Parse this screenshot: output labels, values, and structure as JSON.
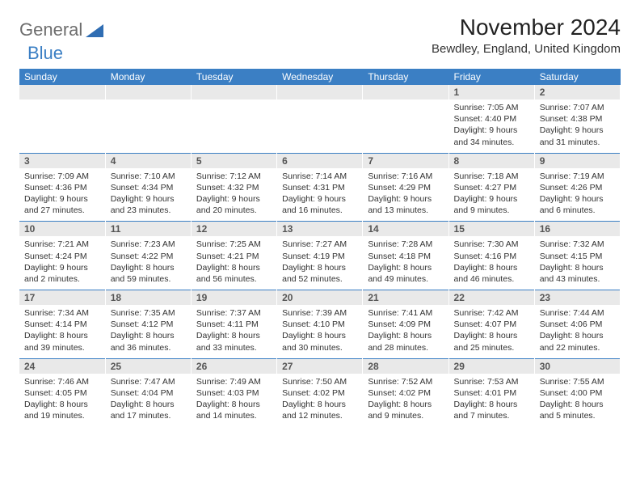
{
  "logo": {
    "part1": "General",
    "part2": "Blue"
  },
  "title": "November 2024",
  "location": "Bewdley, England, United Kingdom",
  "colors": {
    "header_bg": "#3b7fc4",
    "header_text": "#ffffff",
    "daynum_bg": "#e9e9e9",
    "border": "#3b7fc4",
    "text": "#333333",
    "logo_gray": "#6d6d6d",
    "logo_blue": "#3b7fc4"
  },
  "columns": [
    "Sunday",
    "Monday",
    "Tuesday",
    "Wednesday",
    "Thursday",
    "Friday",
    "Saturday"
  ],
  "weeks": [
    [
      null,
      null,
      null,
      null,
      null,
      {
        "n": "1",
        "sr": "7:05 AM",
        "ss": "4:40 PM",
        "dl": "9 hours and 34 minutes."
      },
      {
        "n": "2",
        "sr": "7:07 AM",
        "ss": "4:38 PM",
        "dl": "9 hours and 31 minutes."
      }
    ],
    [
      {
        "n": "3",
        "sr": "7:09 AM",
        "ss": "4:36 PM",
        "dl": "9 hours and 27 minutes."
      },
      {
        "n": "4",
        "sr": "7:10 AM",
        "ss": "4:34 PM",
        "dl": "9 hours and 23 minutes."
      },
      {
        "n": "5",
        "sr": "7:12 AM",
        "ss": "4:32 PM",
        "dl": "9 hours and 20 minutes."
      },
      {
        "n": "6",
        "sr": "7:14 AM",
        "ss": "4:31 PM",
        "dl": "9 hours and 16 minutes."
      },
      {
        "n": "7",
        "sr": "7:16 AM",
        "ss": "4:29 PM",
        "dl": "9 hours and 13 minutes."
      },
      {
        "n": "8",
        "sr": "7:18 AM",
        "ss": "4:27 PM",
        "dl": "9 hours and 9 minutes."
      },
      {
        "n": "9",
        "sr": "7:19 AM",
        "ss": "4:26 PM",
        "dl": "9 hours and 6 minutes."
      }
    ],
    [
      {
        "n": "10",
        "sr": "7:21 AM",
        "ss": "4:24 PM",
        "dl": "9 hours and 2 minutes."
      },
      {
        "n": "11",
        "sr": "7:23 AM",
        "ss": "4:22 PM",
        "dl": "8 hours and 59 minutes."
      },
      {
        "n": "12",
        "sr": "7:25 AM",
        "ss": "4:21 PM",
        "dl": "8 hours and 56 minutes."
      },
      {
        "n": "13",
        "sr": "7:27 AM",
        "ss": "4:19 PM",
        "dl": "8 hours and 52 minutes."
      },
      {
        "n": "14",
        "sr": "7:28 AM",
        "ss": "4:18 PM",
        "dl": "8 hours and 49 minutes."
      },
      {
        "n": "15",
        "sr": "7:30 AM",
        "ss": "4:16 PM",
        "dl": "8 hours and 46 minutes."
      },
      {
        "n": "16",
        "sr": "7:32 AM",
        "ss": "4:15 PM",
        "dl": "8 hours and 43 minutes."
      }
    ],
    [
      {
        "n": "17",
        "sr": "7:34 AM",
        "ss": "4:14 PM",
        "dl": "8 hours and 39 minutes."
      },
      {
        "n": "18",
        "sr": "7:35 AM",
        "ss": "4:12 PM",
        "dl": "8 hours and 36 minutes."
      },
      {
        "n": "19",
        "sr": "7:37 AM",
        "ss": "4:11 PM",
        "dl": "8 hours and 33 minutes."
      },
      {
        "n": "20",
        "sr": "7:39 AM",
        "ss": "4:10 PM",
        "dl": "8 hours and 30 minutes."
      },
      {
        "n": "21",
        "sr": "7:41 AM",
        "ss": "4:09 PM",
        "dl": "8 hours and 28 minutes."
      },
      {
        "n": "22",
        "sr": "7:42 AM",
        "ss": "4:07 PM",
        "dl": "8 hours and 25 minutes."
      },
      {
        "n": "23",
        "sr": "7:44 AM",
        "ss": "4:06 PM",
        "dl": "8 hours and 22 minutes."
      }
    ],
    [
      {
        "n": "24",
        "sr": "7:46 AM",
        "ss": "4:05 PM",
        "dl": "8 hours and 19 minutes."
      },
      {
        "n": "25",
        "sr": "7:47 AM",
        "ss": "4:04 PM",
        "dl": "8 hours and 17 minutes."
      },
      {
        "n": "26",
        "sr": "7:49 AM",
        "ss": "4:03 PM",
        "dl": "8 hours and 14 minutes."
      },
      {
        "n": "27",
        "sr": "7:50 AM",
        "ss": "4:02 PM",
        "dl": "8 hours and 12 minutes."
      },
      {
        "n": "28",
        "sr": "7:52 AM",
        "ss": "4:02 PM",
        "dl": "8 hours and 9 minutes."
      },
      {
        "n": "29",
        "sr": "7:53 AM",
        "ss": "4:01 PM",
        "dl": "8 hours and 7 minutes."
      },
      {
        "n": "30",
        "sr": "7:55 AM",
        "ss": "4:00 PM",
        "dl": "8 hours and 5 minutes."
      }
    ]
  ],
  "labels": {
    "sunrise": "Sunrise: ",
    "sunset": "Sunset: ",
    "daylight": "Daylight: "
  }
}
